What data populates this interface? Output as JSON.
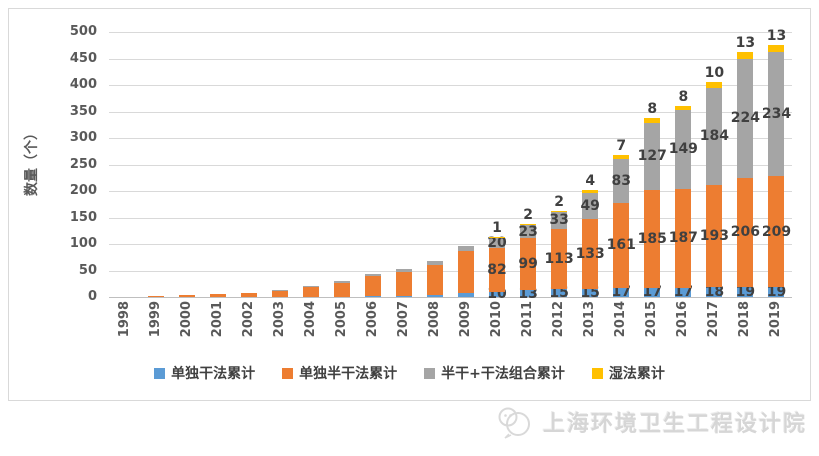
{
  "chart_data": {
    "type": "bar",
    "stacked": true,
    "title": "",
    "xlabel": "",
    "ylabel": "数量（个）",
    "ylim": [
      0,
      500
    ],
    "y_ticks": [
      0,
      50,
      100,
      150,
      200,
      250,
      300,
      350,
      400,
      450,
      500
    ],
    "grid": true,
    "legend_position": "bottom",
    "categories": [
      "1998",
      "1999",
      "2000",
      "2001",
      "2002",
      "2003",
      "2004",
      "2005",
      "2006",
      "2007",
      "2008",
      "2009",
      "2010",
      "2011",
      "2012",
      "2013",
      "2014",
      "2015",
      "2016",
      "2017",
      "2018",
      "2019"
    ],
    "series": [
      {
        "name": "单独干法累计",
        "color": "#5B9BD5",
        "label_position": "center",
        "values": [
          0,
          0,
          0,
          0,
          0,
          0,
          0,
          0,
          1,
          2,
          4,
          8,
          10,
          13,
          15,
          15,
          17,
          17,
          17,
          18,
          19,
          19
        ]
      },
      {
        "name": "单独半干法累计",
        "color": "#ED7D31",
        "label_position": "center",
        "values": [
          0,
          2,
          3,
          5,
          8,
          12,
          19,
          27,
          38,
          45,
          57,
          78,
          82,
          99,
          113,
          133,
          161,
          185,
          187,
          193,
          206,
          209
        ]
      },
      {
        "name": "半干+干法组合累计",
        "color": "#A5A5A5",
        "label_position": "center",
        "values": [
          0,
          0,
          0,
          0,
          0,
          1,
          2,
          3,
          5,
          6,
          7,
          10,
          20,
          23,
          33,
          49,
          83,
          127,
          149,
          184,
          224,
          234
        ]
      },
      {
        "name": "湿法累计",
        "color": "#FFC000",
        "label_position": "outside-top",
        "values": [
          0,
          0,
          0,
          0,
          0,
          0,
          0,
          0,
          0,
          0,
          0,
          0,
          1,
          2,
          2,
          4,
          7,
          8,
          8,
          10,
          13,
          13
        ]
      }
    ],
    "data_labels": {
      "start_category": "2010",
      "color": "#404040"
    }
  },
  "colors": {
    "gridline": "#D9D9D9",
    "axis_line": "#BFBFBF",
    "tick_label": "#595959",
    "data_label": "#404040"
  },
  "watermark": {
    "text": "上海环境卫生工程设计院",
    "logo": "overlapping-circles-logo"
  }
}
